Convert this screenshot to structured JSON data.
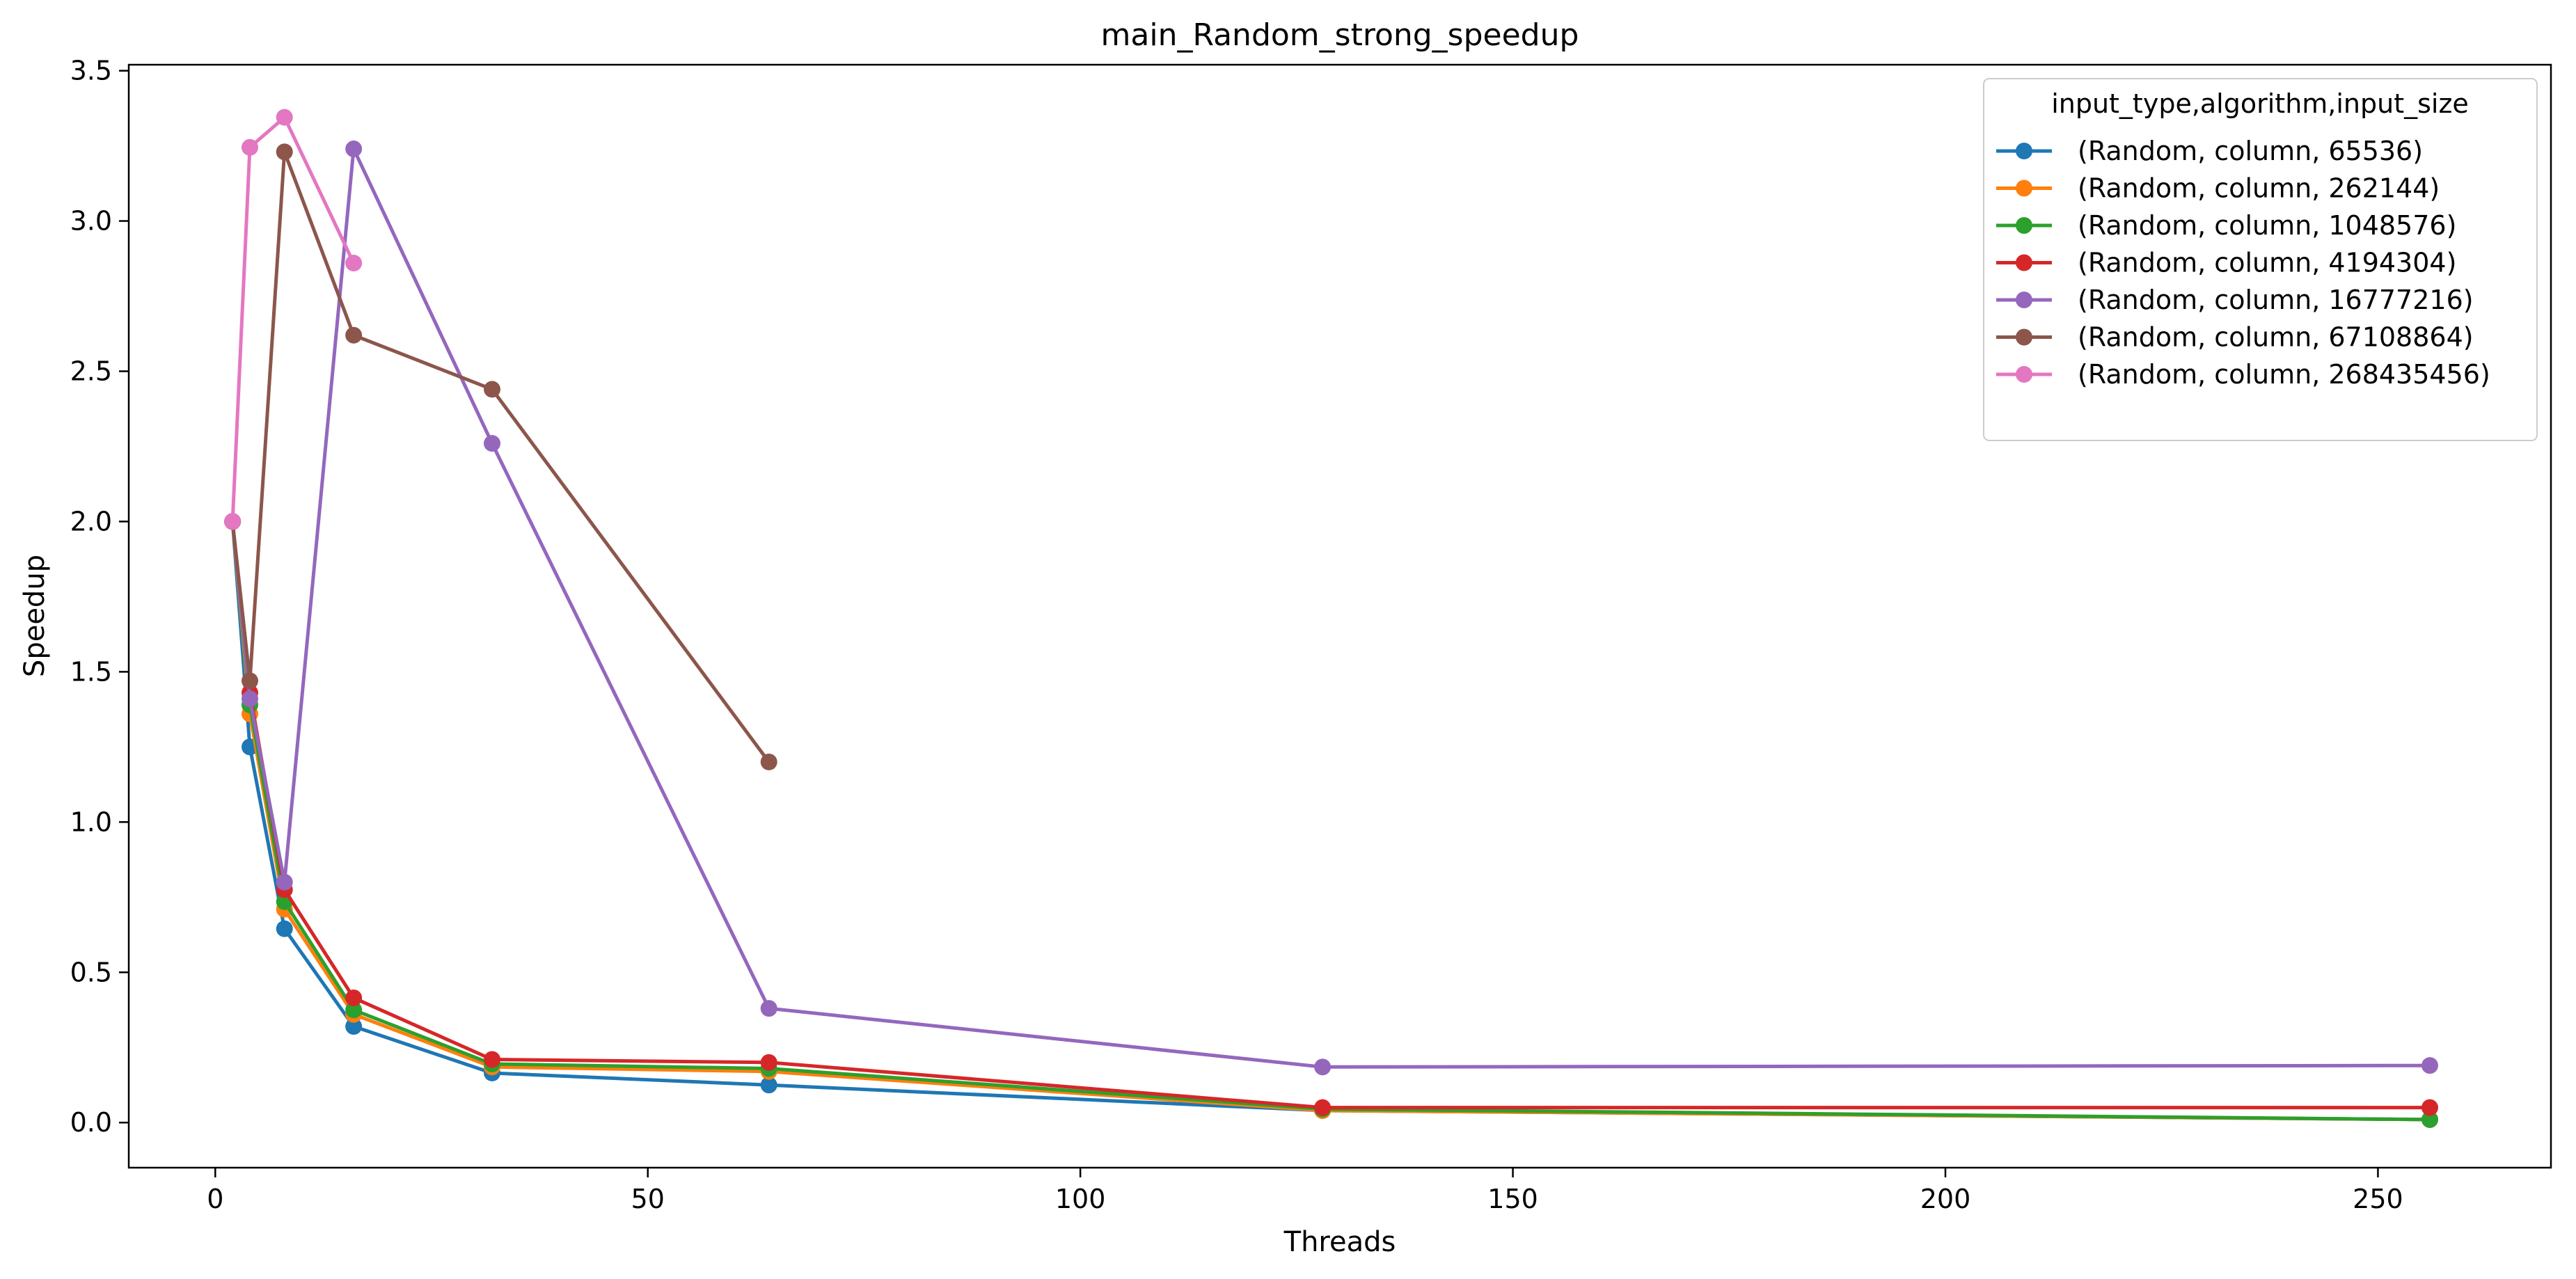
{
  "chart_data": {
    "type": "line",
    "title": "main_Random_strong_speedup",
    "xlabel": "Threads",
    "ylabel": "Speedup",
    "xlim": [
      -10,
      270
    ],
    "ylim": [
      -0.15,
      3.52
    ],
    "xticks": [
      0,
      50,
      100,
      150,
      200,
      250
    ],
    "yticks": [
      0.0,
      0.5,
      1.0,
      1.5,
      2.0,
      2.5,
      3.0,
      3.5
    ],
    "xtick_labels": [
      "0",
      "50",
      "100",
      "150",
      "200",
      "250"
    ],
    "ytick_labels": [
      "0.0",
      "0.5",
      "1.0",
      "1.5",
      "2.0",
      "2.5",
      "3.0",
      "3.5"
    ],
    "grid": false,
    "legend": {
      "title": "input_type,algorithm,input_size",
      "position": "top-right"
    },
    "series": [
      {
        "name": "(Random, column, 65536)",
        "color": "#1f77b4",
        "x": [
          2,
          4,
          8,
          16,
          32,
          64,
          128,
          256
        ],
        "y": [
          2.0,
          1.25,
          0.645,
          0.32,
          0.165,
          0.125,
          0.04,
          0.01
        ]
      },
      {
        "name": "(Random, column, 262144)",
        "color": "#ff7f0e",
        "x": [
          2,
          4,
          8,
          16,
          32,
          64,
          128,
          256
        ],
        "y": [
          2.0,
          1.36,
          0.71,
          0.36,
          0.185,
          0.17,
          0.04,
          0.01
        ]
      },
      {
        "name": "(Random, column, 1048576)",
        "color": "#2ca02c",
        "x": [
          2,
          4,
          8,
          16,
          32,
          64,
          128,
          256
        ],
        "y": [
          2.0,
          1.39,
          0.735,
          0.375,
          0.195,
          0.18,
          0.045,
          0.01
        ]
      },
      {
        "name": "(Random, column, 4194304)",
        "color": "#d62728",
        "x": [
          2,
          4,
          8,
          16,
          32,
          64,
          128,
          256
        ],
        "y": [
          2.0,
          1.43,
          0.775,
          0.415,
          0.21,
          0.2,
          0.05,
          0.05
        ]
      },
      {
        "name": "(Random, column, 16777216)",
        "color": "#9467bd",
        "x": [
          2,
          4,
          8,
          16,
          32,
          64,
          128,
          256
        ],
        "y": [
          2.0,
          1.41,
          0.8,
          3.24,
          2.26,
          0.38,
          0.185,
          0.19
        ]
      },
      {
        "name": "(Random, column, 67108864)",
        "color": "#8c564b",
        "x": [
          2,
          4,
          8,
          16,
          32,
          64
        ],
        "y": [
          2.0,
          1.47,
          3.23,
          2.62,
          2.44,
          1.2
        ]
      },
      {
        "name": "(Random, column, 268435456)",
        "color": "#e377c2",
        "x": [
          2,
          4,
          8,
          16
        ],
        "y": [
          2.0,
          3.245,
          3.345,
          2.86
        ]
      }
    ]
  }
}
